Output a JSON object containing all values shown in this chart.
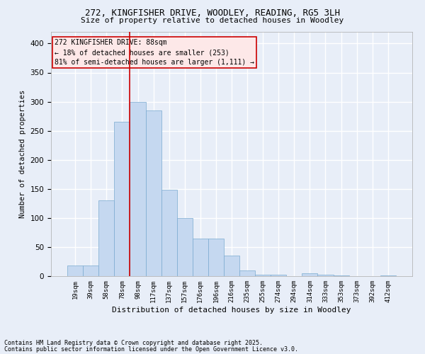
{
  "title1": "272, KINGFISHER DRIVE, WOODLEY, READING, RG5 3LH",
  "title2": "Size of property relative to detached houses in Woodley",
  "xlabel": "Distribution of detached houses by size in Woodley",
  "ylabel": "Number of detached properties",
  "footer1": "Contains HM Land Registry data © Crown copyright and database right 2025.",
  "footer2": "Contains public sector information licensed under the Open Government Licence v3.0.",
  "categories": [
    "19sqm",
    "39sqm",
    "58sqm",
    "78sqm",
    "98sqm",
    "117sqm",
    "137sqm",
    "157sqm",
    "176sqm",
    "196sqm",
    "216sqm",
    "235sqm",
    "255sqm",
    "274sqm",
    "294sqm",
    "314sqm",
    "333sqm",
    "353sqm",
    "373sqm",
    "392sqm",
    "412sqm"
  ],
  "values": [
    18,
    18,
    130,
    265,
    300,
    285,
    148,
    100,
    65,
    65,
    35,
    10,
    3,
    2,
    0,
    5,
    2,
    1,
    0,
    0,
    1
  ],
  "bar_color": "#c5d8f0",
  "bar_edge_color": "#7aaad0",
  "bg_color": "#e8eef8",
  "grid_color": "#ffffff",
  "annotation_line1": "272 KINGFISHER DRIVE: 88sqm",
  "annotation_line2": "← 18% of detached houses are smaller (253)",
  "annotation_line3": "81% of semi-detached houses are larger (1,111) →",
  "annotation_box_color": "#fde8e8",
  "annotation_box_edge": "#cc0000",
  "vline_color": "#cc0000",
  "ylim": [
    0,
    420
  ],
  "yticks": [
    0,
    50,
    100,
    150,
    200,
    250,
    300,
    350,
    400
  ]
}
